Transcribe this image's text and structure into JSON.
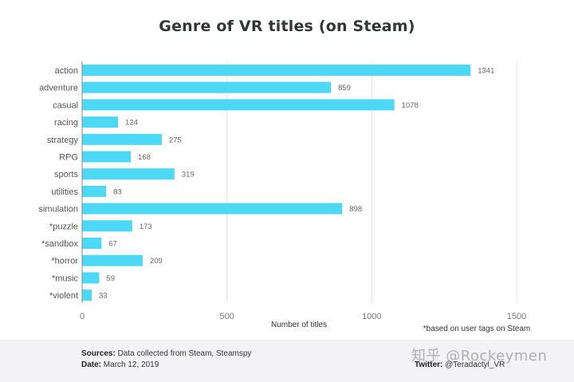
{
  "chart_data": {
    "type": "bar",
    "orientation": "horizontal",
    "title": "Genre of VR titles (on Steam)",
    "xlabel": "Number of titles",
    "ylabel": "",
    "xlim": [
      0,
      1500
    ],
    "xticks": [
      0,
      500,
      1000,
      1500
    ],
    "grid": "vertical",
    "bar_color": "#4dd8f6",
    "categories": [
      "action",
      "adventure",
      "casual",
      "racing",
      "strategy",
      "RPG",
      "sports",
      "utilities",
      "simulation",
      "*puzzle",
      "*sandbox",
      "*horror",
      "*music",
      "*violent"
    ],
    "values": [
      1341,
      859,
      1078,
      124,
      275,
      168,
      319,
      83,
      898,
      173,
      67,
      209,
      59,
      33
    ],
    "footnote": "*based on user tags on Steam"
  },
  "footer": {
    "sources_label": "Sources:",
    "sources_text": "Data collected from Steam, Steamspy",
    "date_label": "Date:",
    "date_text": "March 12, 2019",
    "twitter_label": "Twitter:",
    "twitter_text": "@Teradactyl_VR",
    "watermark": "知乎 @Rockeymen"
  }
}
